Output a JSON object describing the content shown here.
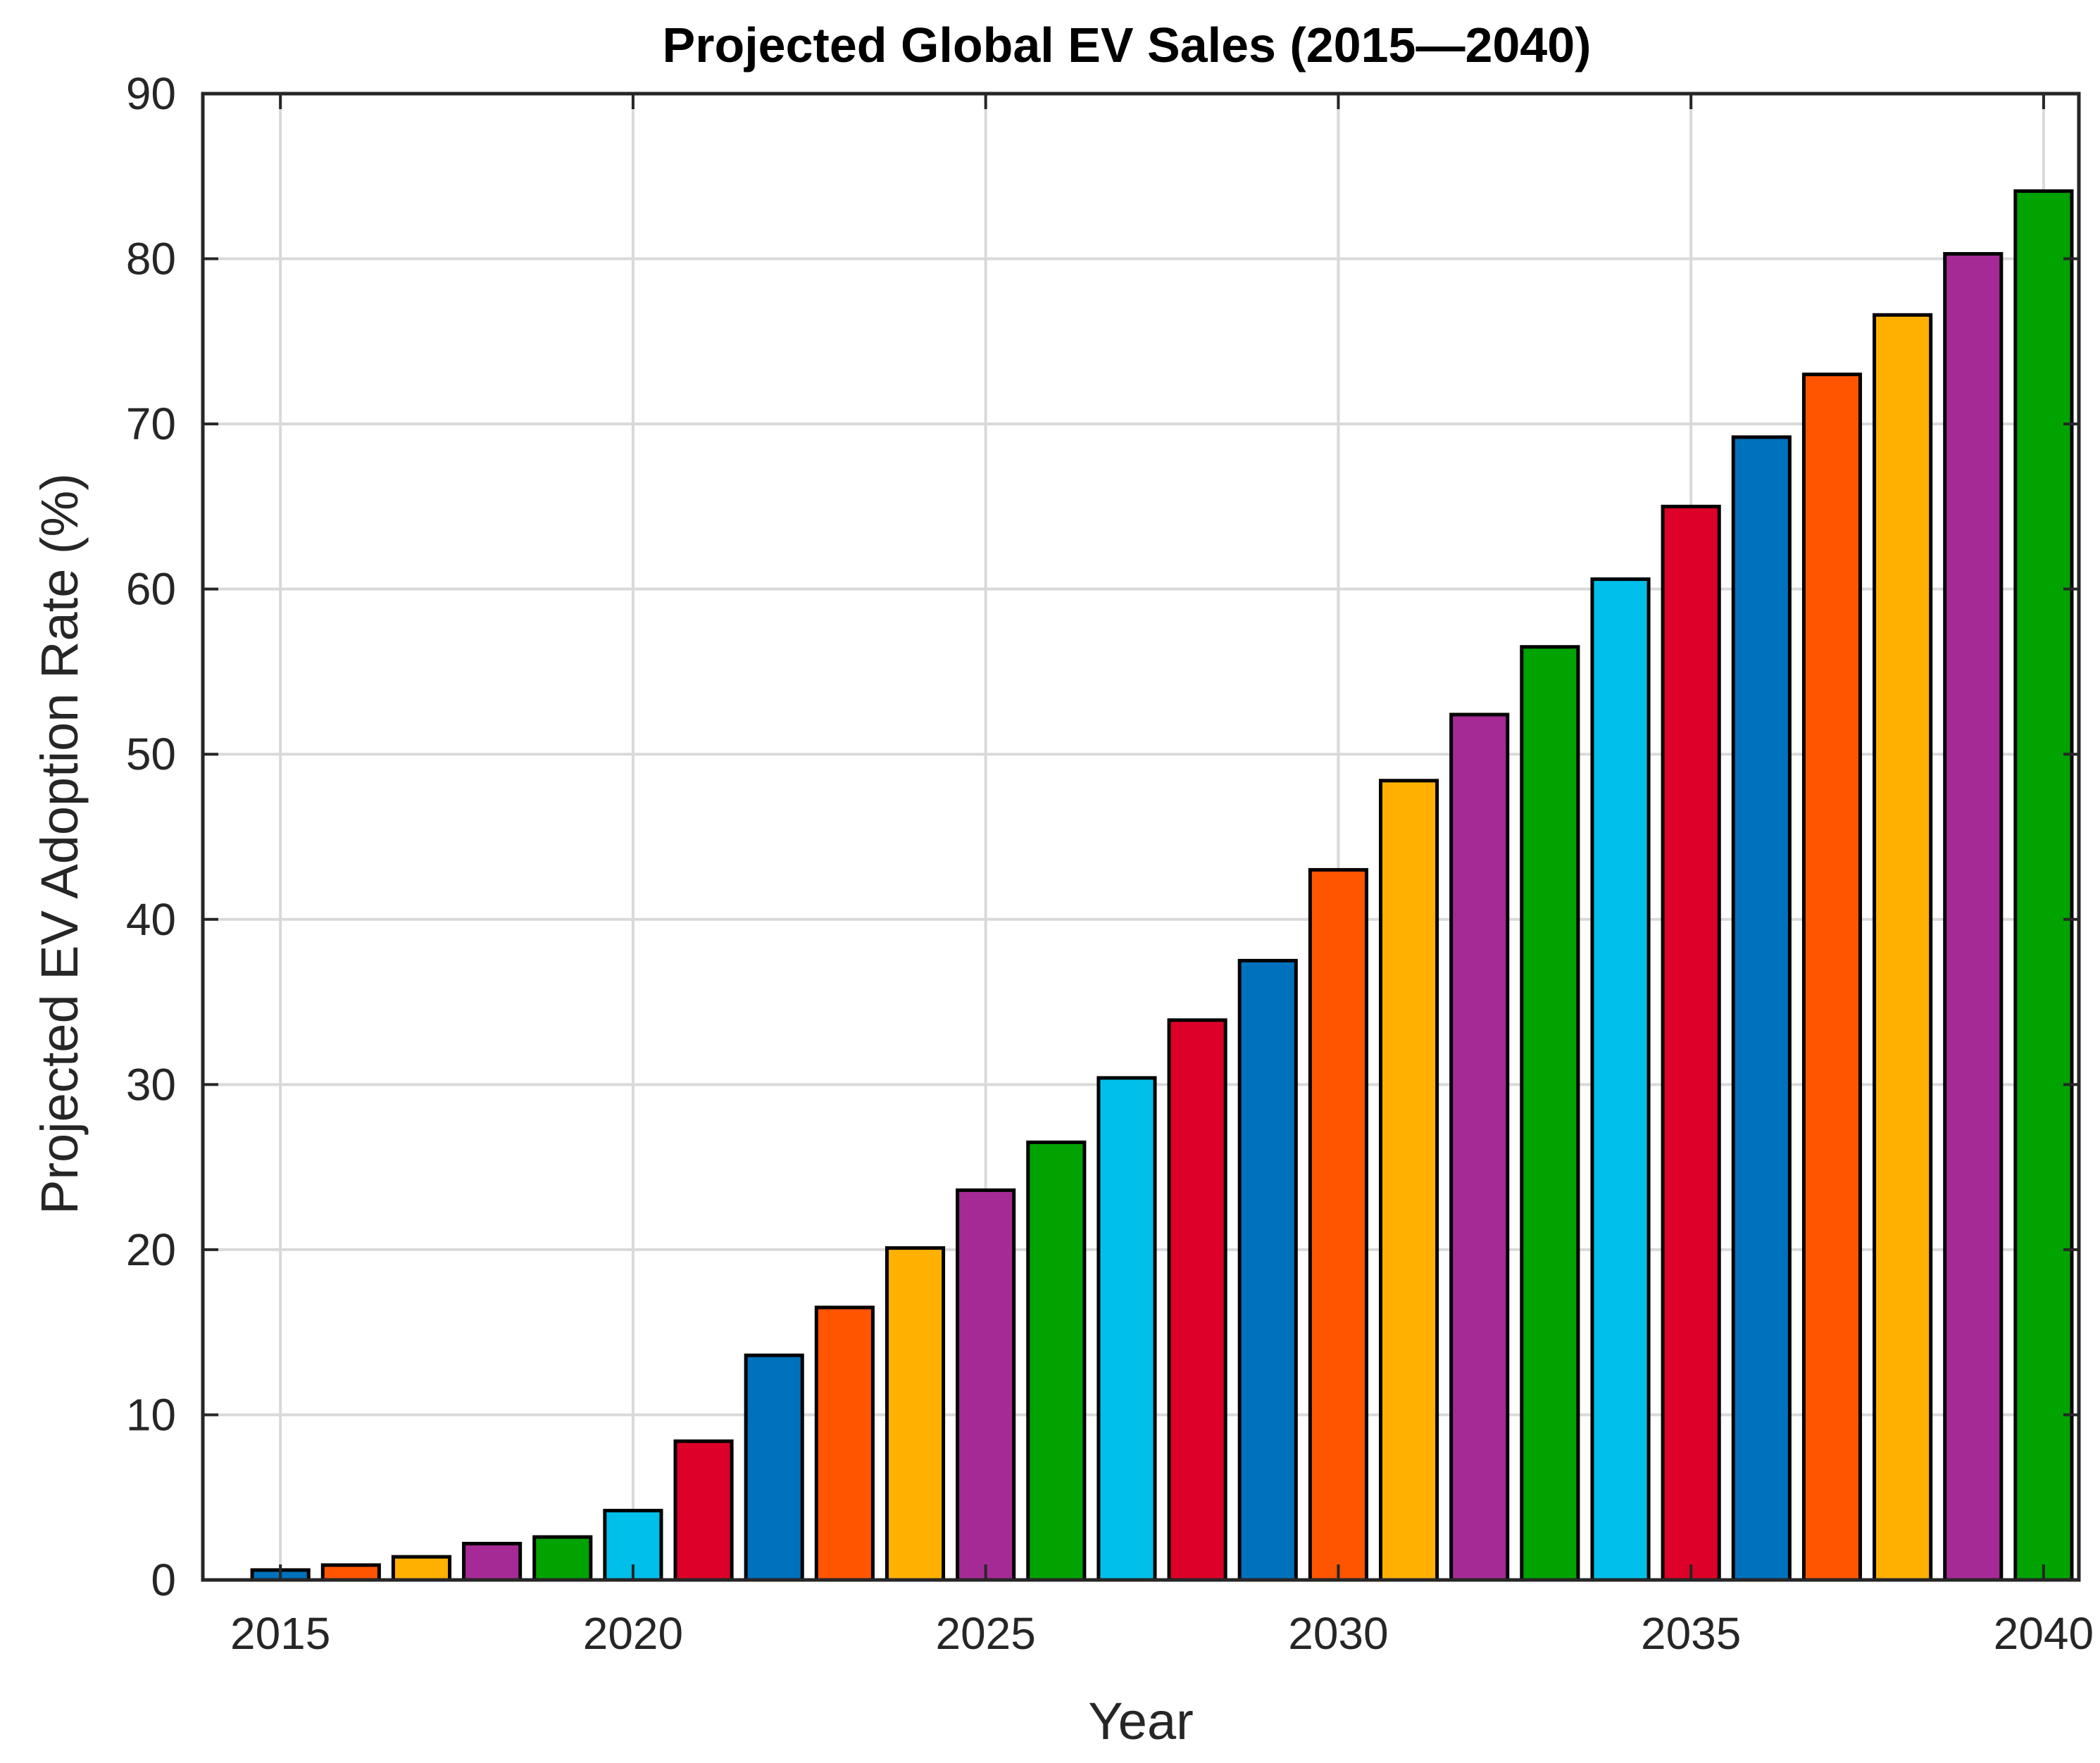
{
  "chart_data": {
    "type": "bar",
    "title": "Projected Global EV Sales (2015—2040)",
    "xlabel": "Year",
    "ylabel": "Projected EV Adoption Rate (%)",
    "x": [
      2015,
      2016,
      2017,
      2018,
      2019,
      2020,
      2021,
      2022,
      2023,
      2024,
      2025,
      2026,
      2027,
      2028,
      2029,
      2030,
      2031,
      2032,
      2033,
      2034,
      2035,
      2036,
      2037,
      2038,
      2039,
      2040
    ],
    "values": [
      0.6,
      0.9,
      1.4,
      2.2,
      2.6,
      4.2,
      8.4,
      13.6,
      16.5,
      20.1,
      23.6,
      26.5,
      30.4,
      33.9,
      37.5,
      43.0,
      48.4,
      52.4,
      56.5,
      60.6,
      65.0,
      69.2,
      73.0,
      76.6,
      80.3,
      84.1
    ],
    "bar_colors": [
      "#0072BD",
      "#FF5500",
      "#FFB000",
      "#A62A95",
      "#00A300",
      "#00BFEA",
      "#DD0028",
      "#0072BD",
      "#FF5500",
      "#FFB000",
      "#A62A95",
      "#00A300",
      "#00BFEA",
      "#DD0028",
      "#0072BD",
      "#FF5500",
      "#FFB000",
      "#A62A95",
      "#00A300",
      "#00BFEA",
      "#DD0028",
      "#0072BD",
      "#FF5500",
      "#FFB000",
      "#A62A95",
      "#00A300"
    ],
    "bar_edge_color": "#000000",
    "xlim": [
      2013.9,
      2040.5
    ],
    "ylim": [
      0,
      90
    ],
    "xticks": [
      2015,
      2020,
      2025,
      2030,
      2035,
      2040
    ],
    "xtick_labels": [
      "2015",
      "2020",
      "2025",
      "2030",
      "2035",
      "2040"
    ],
    "yticks": [
      0,
      10,
      20,
      30,
      40,
      50,
      60,
      70,
      80,
      90
    ],
    "ytick_labels": [
      "0",
      "10",
      "20",
      "30",
      "40",
      "50",
      "60",
      "70",
      "80",
      "90"
    ],
    "grid": true,
    "grid_color": "#d9d9d9",
    "axes_color": "#262626",
    "bar_width_fraction": 0.8
  }
}
